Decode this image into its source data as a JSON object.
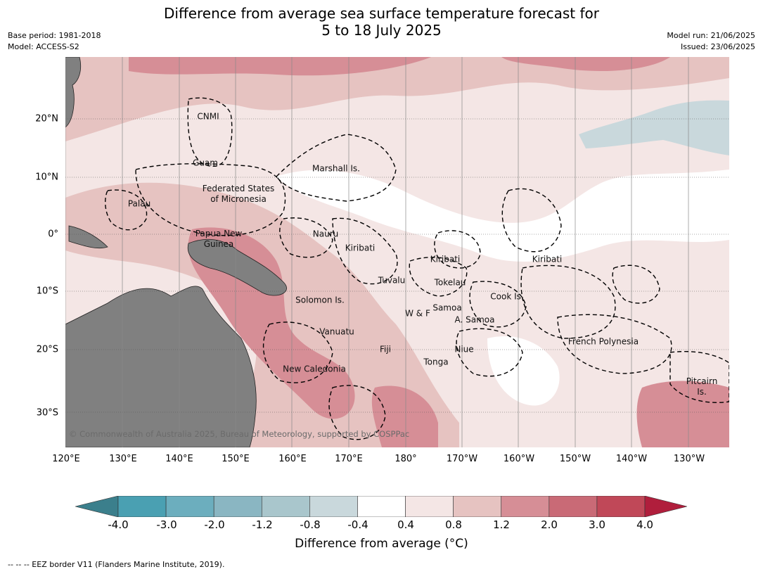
{
  "header": {
    "title_line1": "Difference from average sea surface temperature forecast for",
    "title_line2": "5 to 18 July 2025",
    "base_period": "Base period: 1981-2018",
    "model": "Model: ACCESS-S2",
    "model_run": "Model run: 21/06/2025",
    "issued": "Issued: 23/06/2025"
  },
  "map": {
    "lat_labels": [
      "20°N",
      "10°N",
      "0°",
      "10°S",
      "20°S",
      "30°S"
    ],
    "lon_labels": [
      "120°E",
      "130°E",
      "140°E",
      "150°E",
      "160°E",
      "170°E",
      "180°",
      "170°W",
      "160°W",
      "150°W",
      "140°W",
      "130°W"
    ],
    "regions": {
      "cnmi": "CNMI",
      "guam": "Guam",
      "marshall": "Marshall Is.",
      "fsm_1": "Federated States",
      "fsm_2": "of Micronesia",
      "palau": "Palau",
      "png_1": "Papua New",
      "png_2": "Guinea",
      "nauru": "Nauru",
      "kiribati_w": "Kiribati",
      "kiribati_c": "Kiribati",
      "kiribati_e": "Kiribati",
      "tuvalu": "Tuvalu",
      "tokelau": "Tokelau",
      "cook": "Cook Is.",
      "solomon": "Solomon Is.",
      "wf": "W & F",
      "samoa": "Samoa",
      "asamoa": "A. Samoa",
      "vanuatu": "Vanuatu",
      "fiji": "Fiji",
      "niue": "Niue",
      "tonga": "Tonga",
      "french_poly": "French Polynesia",
      "new_caledonia": "New Caledonia",
      "pitcairn_1": "Pitcairn",
      "pitcairn_2": "Is."
    },
    "copyright": "© Commonwealth of Australia 2025, Bureau of Meteorology, supported by COSPPac",
    "land_color": "#808080"
  },
  "colorbar": {
    "ticks": [
      "-4.0",
      "-3.0",
      "-2.0",
      "-1.2",
      "-0.8",
      "-0.4",
      "0.4",
      "0.8",
      "1.2",
      "2.0",
      "3.0",
      "4.0"
    ],
    "colors": [
      "#3b7f8c",
      "#4aa0b2",
      "#6caebe",
      "#8ab6c2",
      "#a9c6cc",
      "#c9d8dc",
      "#ffffff",
      "#f4e6e5",
      "#e6c3c1",
      "#d68e96",
      "#c96a76",
      "#c04858",
      "#b01e3c"
    ],
    "label": "Difference from average (°C)"
  },
  "footnote": "--  --  -- EEZ border V11 (Flanders Marine Institute, 2019)."
}
